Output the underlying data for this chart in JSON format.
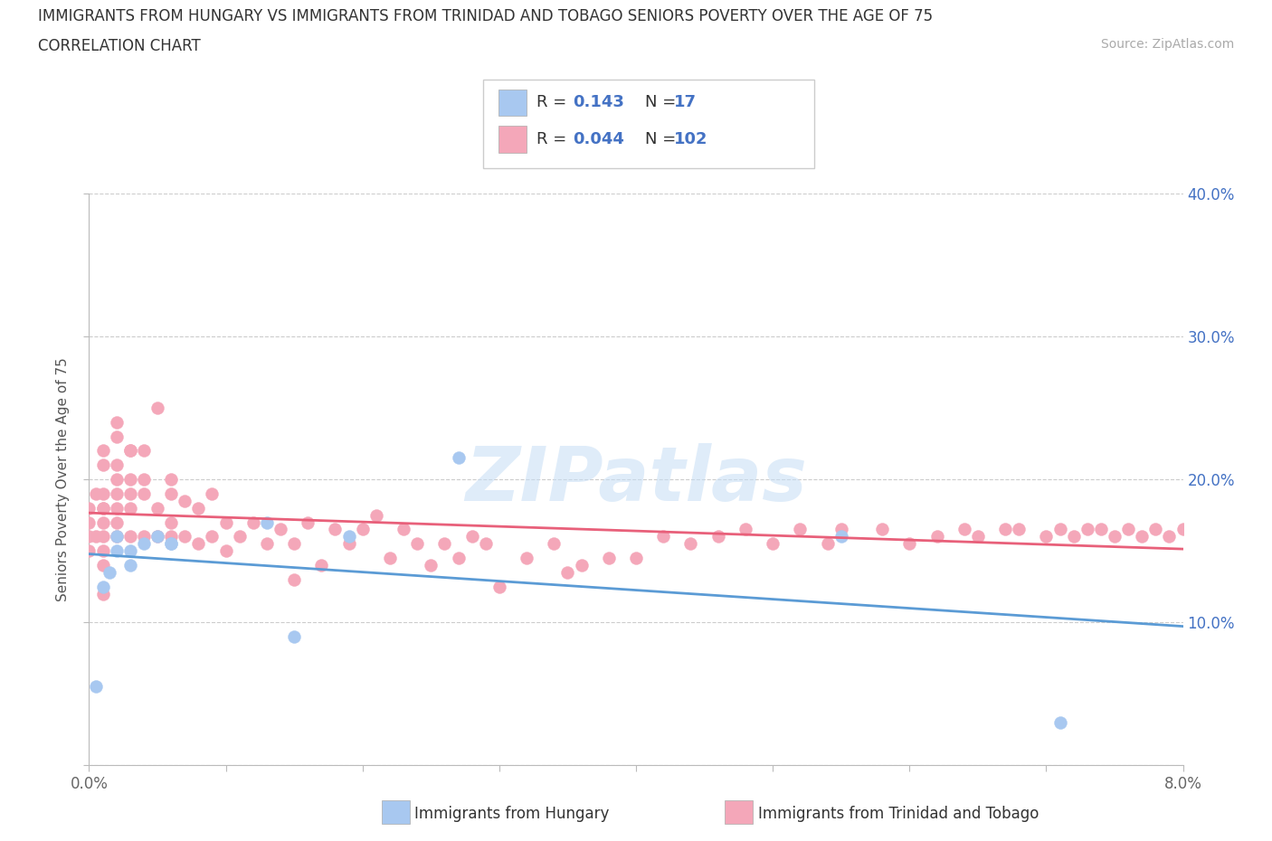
{
  "title_line1": "IMMIGRANTS FROM HUNGARY VS IMMIGRANTS FROM TRINIDAD AND TOBAGO SENIORS POVERTY OVER THE AGE OF 75",
  "title_line2": "CORRELATION CHART",
  "source_text": "Source: ZipAtlas.com",
  "ylabel": "Seniors Poverty Over the Age of 75",
  "watermark": "ZIPatlas",
  "hungary_R": 0.143,
  "hungary_N": 17,
  "trinidad_R": 0.044,
  "trinidad_N": 102,
  "xlim": [
    0.0,
    0.08
  ],
  "ylim": [
    0.0,
    0.4
  ],
  "hungary_color": "#a8c8f0",
  "trinidad_color": "#f4a7b9",
  "hungary_line_color": "#5b9bd5",
  "trinidad_line_color": "#e8607a",
  "grid_color": "#cccccc",
  "background_color": "#ffffff",
  "text_color": "#333333",
  "blue_label_color": "#4472c4",
  "hungary_x": [
    0.0005,
    0.001,
    0.0015,
    0.002,
    0.002,
    0.003,
    0.003,
    0.004,
    0.005,
    0.006,
    0.006,
    0.013,
    0.015,
    0.019,
    0.027,
    0.055,
    0.071
  ],
  "hungary_y": [
    0.055,
    0.125,
    0.135,
    0.15,
    0.16,
    0.15,
    0.14,
    0.155,
    0.16,
    0.155,
    0.155,
    0.17,
    0.09,
    0.16,
    0.215,
    0.16,
    0.03
  ],
  "trinidad_x": [
    0.0,
    0.0,
    0.0,
    0.0,
    0.0005,
    0.0005,
    0.001,
    0.001,
    0.001,
    0.001,
    0.001,
    0.001,
    0.001,
    0.001,
    0.001,
    0.001,
    0.002,
    0.002,
    0.002,
    0.002,
    0.002,
    0.002,
    0.002,
    0.002,
    0.003,
    0.003,
    0.003,
    0.003,
    0.003,
    0.003,
    0.004,
    0.004,
    0.004,
    0.004,
    0.005,
    0.005,
    0.005,
    0.006,
    0.006,
    0.006,
    0.006,
    0.007,
    0.007,
    0.008,
    0.008,
    0.009,
    0.009,
    0.01,
    0.01,
    0.011,
    0.012,
    0.013,
    0.014,
    0.015,
    0.015,
    0.016,
    0.017,
    0.018,
    0.019,
    0.02,
    0.021,
    0.022,
    0.023,
    0.024,
    0.025,
    0.026,
    0.027,
    0.028,
    0.029,
    0.03,
    0.032,
    0.034,
    0.035,
    0.036,
    0.038,
    0.04,
    0.042,
    0.044,
    0.046,
    0.048,
    0.05,
    0.052,
    0.054,
    0.055,
    0.058,
    0.06,
    0.062,
    0.064,
    0.065,
    0.067,
    0.068,
    0.07,
    0.071,
    0.072,
    0.073,
    0.074,
    0.075,
    0.076,
    0.077,
    0.078,
    0.079,
    0.08
  ],
  "trinidad_y": [
    0.15,
    0.17,
    0.16,
    0.18,
    0.19,
    0.16,
    0.17,
    0.18,
    0.15,
    0.14,
    0.16,
    0.12,
    0.19,
    0.18,
    0.21,
    0.22,
    0.24,
    0.23,
    0.2,
    0.19,
    0.21,
    0.18,
    0.17,
    0.16,
    0.22,
    0.2,
    0.19,
    0.18,
    0.22,
    0.16,
    0.2,
    0.22,
    0.19,
    0.16,
    0.18,
    0.25,
    0.16,
    0.19,
    0.2,
    0.17,
    0.16,
    0.185,
    0.16,
    0.18,
    0.155,
    0.16,
    0.19,
    0.17,
    0.15,
    0.16,
    0.17,
    0.155,
    0.165,
    0.155,
    0.13,
    0.17,
    0.14,
    0.165,
    0.155,
    0.165,
    0.175,
    0.145,
    0.165,
    0.155,
    0.14,
    0.155,
    0.145,
    0.16,
    0.155,
    0.125,
    0.145,
    0.155,
    0.135,
    0.14,
    0.145,
    0.145,
    0.16,
    0.155,
    0.16,
    0.165,
    0.155,
    0.165,
    0.155,
    0.165,
    0.165,
    0.155,
    0.16,
    0.165,
    0.16,
    0.165,
    0.165,
    0.16,
    0.165,
    0.16,
    0.165,
    0.165,
    0.16,
    0.165,
    0.16,
    0.165,
    0.16,
    0.165
  ]
}
